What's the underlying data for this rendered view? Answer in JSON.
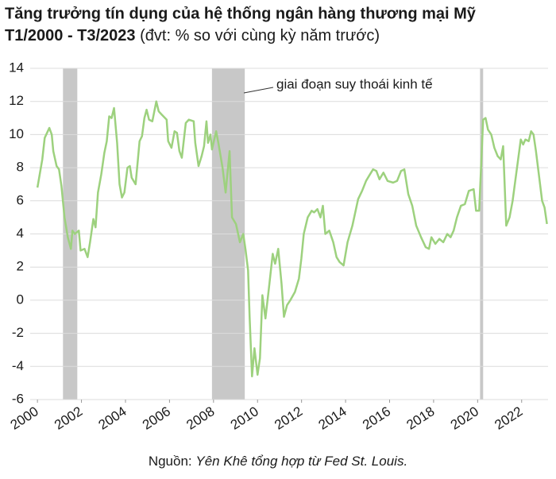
{
  "chart_data": {
    "type": "line",
    "title": "Tăng trưởng tín dụng của hệ thống ngân hàng thương mại Mỹ",
    "period": "T1/2000 - T3/2023",
    "unit_note": "(đvt: % so với cùng kỳ năm trước)",
    "annotation": "giai đoạn suy thoái kinh tế",
    "source_label": "Nguồn:",
    "source_text": "Yên Khê tổng hợp từ Fed St. Louis.",
    "color": "#9dd17e",
    "shade_color": "#c8c8c8",
    "shaded_periods": [
      [
        2001.16,
        2001.81
      ],
      [
        2007.93,
        2009.42
      ],
      [
        2020.11,
        2020.25
      ]
    ],
    "xlim": [
      1999.67,
      2023.2
    ],
    "xticks": [
      2000,
      2002,
      2004,
      2006,
      2008,
      2010,
      2012,
      2014,
      2016,
      2018,
      2020,
      2022
    ],
    "ylim": [
      -6,
      14
    ],
    "yticks": [
      -6,
      -4,
      -2,
      0,
      2,
      4,
      6,
      8,
      10,
      12,
      14
    ],
    "grid": true,
    "x": [
      2000.0,
      2000.22,
      2000.33,
      2000.54,
      2000.65,
      2000.72,
      2000.87,
      2000.98,
      2001.09,
      2001.23,
      2001.38,
      2001.52,
      2001.59,
      2001.7,
      2001.88,
      2001.96,
      2002.14,
      2002.28,
      2002.39,
      2002.54,
      2002.64,
      2002.75,
      2002.9,
      2003.04,
      2003.15,
      2003.26,
      2003.37,
      2003.48,
      2003.62,
      2003.73,
      2003.84,
      2003.95,
      2004.09,
      2004.2,
      2004.28,
      2004.46,
      2004.64,
      2004.75,
      2004.86,
      2004.96,
      2005.07,
      2005.22,
      2005.4,
      2005.51,
      2005.65,
      2005.87,
      2005.94,
      2006.09,
      2006.23,
      2006.34,
      2006.45,
      2006.56,
      2006.74,
      2006.88,
      2007.1,
      2007.17,
      2007.32,
      2007.46,
      2007.57,
      2007.68,
      2007.75,
      2007.86,
      2007.93,
      2008.12,
      2008.22,
      2008.41,
      2008.55,
      2008.73,
      2008.84,
      2009.02,
      2009.2,
      2009.35,
      2009.46,
      2009.57,
      2009.64,
      2009.75,
      2009.86,
      2010.0,
      2010.11,
      2010.22,
      2010.36,
      2010.54,
      2010.69,
      2010.8,
      2010.94,
      2011.09,
      2011.2,
      2011.34,
      2011.49,
      2011.7,
      2011.88,
      2011.99,
      2012.1,
      2012.28,
      2012.46,
      2012.57,
      2012.72,
      2012.86,
      2012.97,
      2013.08,
      2013.26,
      2013.44,
      2013.59,
      2013.73,
      2013.91,
      2014.09,
      2014.31,
      2014.57,
      2014.75,
      2014.93,
      2015.11,
      2015.25,
      2015.4,
      2015.54,
      2015.72,
      2015.91,
      2016.16,
      2016.34,
      2016.52,
      2016.67,
      2016.85,
      2017.03,
      2017.21,
      2017.43,
      2017.64,
      2017.79,
      2017.9,
      2018.08,
      2018.26,
      2018.44,
      2018.62,
      2018.77,
      2018.91,
      2019.06,
      2019.24,
      2019.42,
      2019.6,
      2019.82,
      2019.93,
      2020.07,
      2020.25,
      2020.36,
      2020.47,
      2020.62,
      2020.76,
      2020.91,
      2021.05,
      2021.16,
      2021.3,
      2021.45,
      2021.59,
      2021.74,
      2021.96,
      2022.07,
      2022.17,
      2022.32,
      2022.43,
      2022.54,
      2022.65,
      2022.79,
      2022.93,
      2023.04,
      2023.15
    ],
    "values": [
      6.8,
      8.5,
      9.8,
      10.4,
      10.0,
      9.0,
      8.1,
      7.9,
      6.9,
      5.0,
      3.8,
      3.1,
      4.2,
      4.0,
      4.2,
      3.0,
      3.1,
      2.6,
      3.5,
      4.9,
      4.4,
      6.5,
      7.6,
      8.9,
      9.6,
      11.1,
      11.0,
      11.6,
      9.5,
      7.0,
      6.2,
      6.5,
      8.0,
      8.1,
      7.4,
      7.0,
      9.6,
      9.9,
      11.0,
      11.5,
      10.9,
      10.8,
      12.0,
      11.4,
      11.2,
      10.9,
      9.6,
      9.2,
      10.2,
      10.1,
      9.0,
      8.6,
      10.7,
      10.9,
      10.8,
      9.5,
      8.1,
      8.7,
      9.3,
      10.8,
      9.5,
      10.0,
      9.1,
      10.2,
      9.5,
      8.0,
      6.5,
      9.0,
      5.0,
      4.6,
      3.5,
      4.0,
      3.0,
      1.8,
      -1.0,
      -4.6,
      -2.9,
      -4.5,
      -3.5,
      0.3,
      -1.1,
      1.0,
      2.8,
      2.2,
      3.1,
      1.0,
      -1.0,
      -0.3,
      0.0,
      0.5,
      1.3,
      2.5,
      4.0,
      5.0,
      5.4,
      5.3,
      5.5,
      5.0,
      5.7,
      4.0,
      4.2,
      3.5,
      2.6,
      2.3,
      2.1,
      3.5,
      4.5,
      6.1,
      6.6,
      7.2,
      7.6,
      7.9,
      7.8,
      7.3,
      7.7,
      7.2,
      7.1,
      7.2,
      7.8,
      7.9,
      6.4,
      5.7,
      4.5,
      3.8,
      3.2,
      3.1,
      3.8,
      3.4,
      3.7,
      3.5,
      4.0,
      3.8,
      4.2,
      5.0,
      5.7,
      5.8,
      6.6,
      6.7,
      5.4,
      5.4,
      10.9,
      11.0,
      10.3,
      10.0,
      9.2,
      8.7,
      8.5,
      9.3,
      4.5,
      5.0,
      6.0,
      7.5,
      9.7,
      9.4,
      9.7,
      9.6,
      10.2,
      10.0,
      9.0,
      7.5,
      6.0,
      5.6,
      4.6
    ]
  }
}
